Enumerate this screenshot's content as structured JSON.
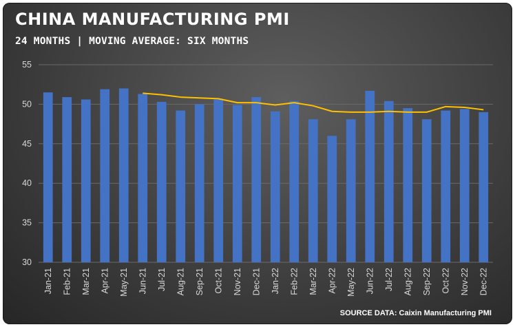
{
  "header": {
    "title": "CHINA MANUFACTURING PMI",
    "subtitle": "24 MONTHS | MOVING AVERAGE: SIX MONTHS"
  },
  "footer": {
    "source": "SOURCE DATA: Caixin Manufacturing PMI"
  },
  "colors": {
    "bar": "#4472C4",
    "moving_average": "#FFC000",
    "gridline": "#6a6a6a",
    "background": "#3f3f3f"
  },
  "chart_data": {
    "type": "bar",
    "categories": [
      "Jan-21",
      "Feb-21",
      "Mar-21",
      "Apr-21",
      "May-21",
      "Jun-21",
      "Jul-21",
      "Aug-21",
      "Sep-21",
      "Oct-21",
      "Nov-21",
      "Dec-21",
      "Jan-22",
      "Feb-22",
      "Mar-22",
      "Apr-22",
      "May-22",
      "Jun-22",
      "Jul-22",
      "Aug-22",
      "Sep-22",
      "Oct-22",
      "Nov-22",
      "Dec-22"
    ],
    "series": [
      {
        "type": "bar",
        "values": [
          51.5,
          50.9,
          50.6,
          51.9,
          52.0,
          51.3,
          50.3,
          49.2,
          50.0,
          50.6,
          49.9,
          50.9,
          49.1,
          50.4,
          48.1,
          46.0,
          48.1,
          51.7,
          50.4,
          49.5,
          48.1,
          49.2,
          49.4,
          49.0
        ]
      },
      {
        "type": "line",
        "values": [
          null,
          null,
          null,
          null,
          null,
          51.4,
          51.2,
          50.9,
          50.8,
          50.7,
          50.2,
          50.2,
          49.9,
          50.2,
          49.8,
          49.1,
          49.0,
          49.0,
          49.1,
          49.0,
          49.0,
          49.7,
          49.6,
          49.3
        ]
      }
    ],
    "ylim": [
      30,
      55
    ],
    "yticks": [
      "30",
      "35",
      "40",
      "45",
      "50",
      "55"
    ],
    "grid": true,
    "title": "CHINA MANUFACTURING PMI",
    "xlabel": "",
    "ylabel": ""
  }
}
